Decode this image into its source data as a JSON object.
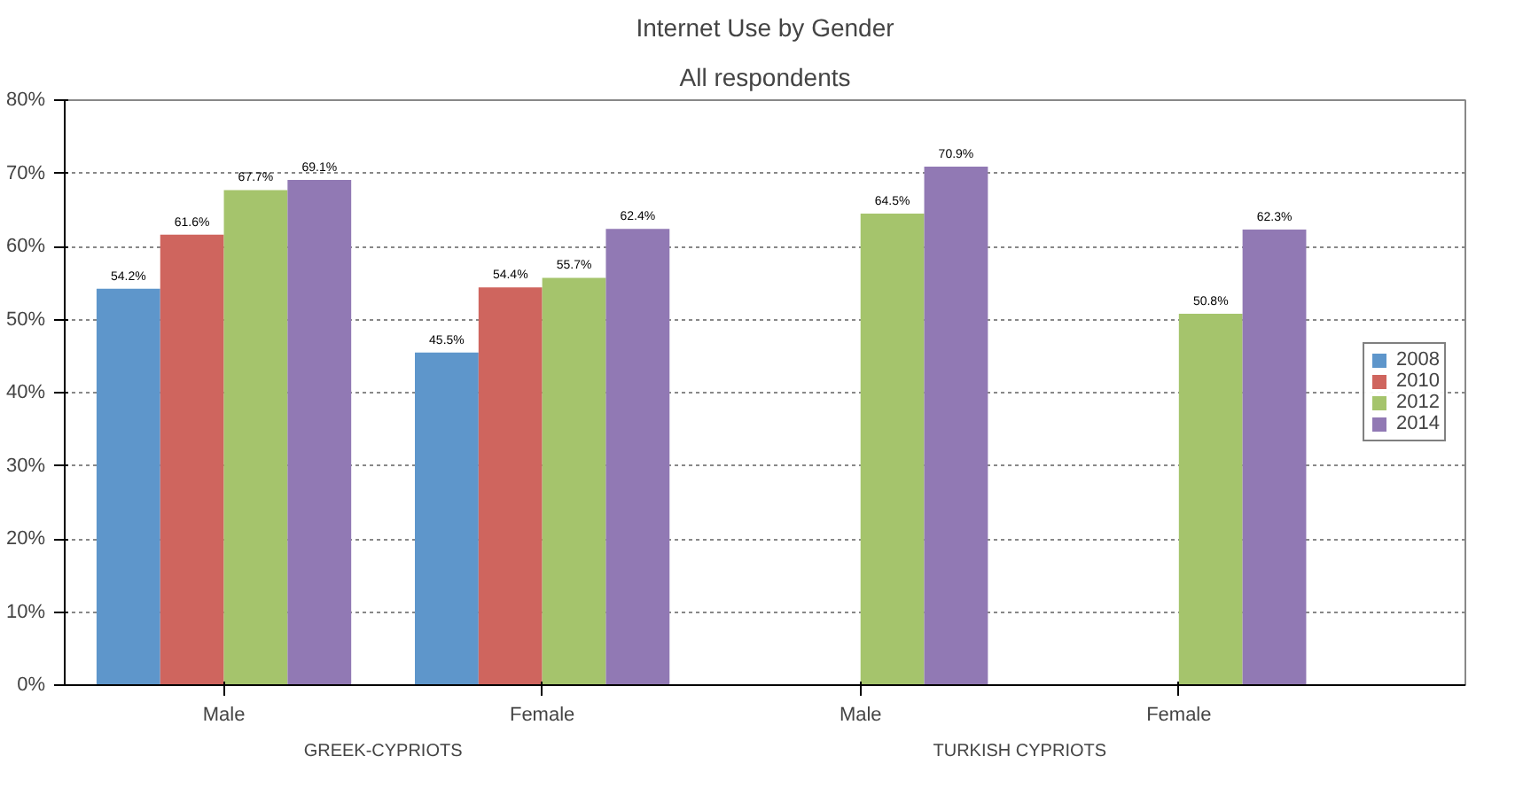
{
  "chart_data": {
    "type": "bar",
    "title": "Internet Use by Gender",
    "subtitle": "All respondents",
    "categories": [
      "Male",
      "Female",
      "Male",
      "Female"
    ],
    "series": [
      {
        "name": "2008",
        "color": "#5e96cb",
        "values": [
          54.2,
          45.5,
          null,
          null
        ],
        "value_labels": [
          "54.2%",
          "45.5%",
          null,
          null
        ]
      },
      {
        "name": "2010",
        "color": "#cf655e",
        "values": [
          61.6,
          54.4,
          null,
          null
        ],
        "value_labels": [
          "61.6%",
          "54.4%",
          null,
          null
        ]
      },
      {
        "name": "2012",
        "color": "#a5c46c",
        "values": [
          67.7,
          55.7,
          64.5,
          50.8
        ],
        "value_labels": [
          "67.7%",
          "55.7%",
          "64.5%",
          "50.8%"
        ]
      },
      {
        "name": "2014",
        "color": "#9179b4",
        "values": [
          69.1,
          62.4,
          70.9,
          62.3
        ],
        "value_labels": [
          "69.1%",
          "62.4%",
          "70.9%",
          "62.3%"
        ]
      }
    ],
    "annotations": [
      "GREEK-CYPRIOTS",
      "TURKISH CYPRIOTS"
    ],
    "ylim": [
      0,
      80
    ],
    "yticks": [
      {
        "value": 0,
        "label": "0%"
      },
      {
        "value": 10,
        "label": "10%"
      },
      {
        "value": 20,
        "label": "20%"
      },
      {
        "value": 30,
        "label": "30%"
      },
      {
        "value": 40,
        "label": "40%"
      },
      {
        "value": 50,
        "label": "50%"
      },
      {
        "value": 60,
        "label": "60%"
      },
      {
        "value": 70,
        "label": "70%"
      },
      {
        "value": 80,
        "label": "80%"
      }
    ],
    "grid": "y",
    "legend": "right"
  }
}
